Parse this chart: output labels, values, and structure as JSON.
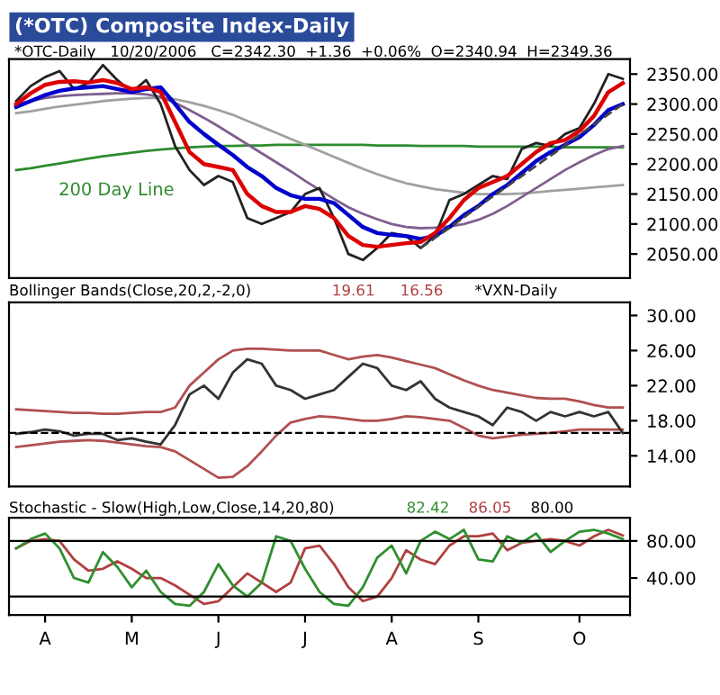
{
  "chart_data": [
    {
      "type": "line",
      "title": "(*OTC) Composite Index-Daily",
      "subtitle": "*OTC-Daily   10/20/2006   C=2342.30  +1.36  +0.06%  O=2340.94  H=2349.36",
      "tick_labels": "y",
      "grid": false,
      "ylim": [
        2010,
        2375
      ],
      "yticks": [
        {
          "value": 2050,
          "label": "2050.00"
        },
        {
          "value": 2100,
          "label": "2100.00"
        },
        {
          "value": 2150,
          "label": "2150.00"
        },
        {
          "value": 2200,
          "label": "2200.00"
        },
        {
          "value": 2250,
          "label": "2250.00"
        },
        {
          "value": 2300,
          "label": "2300.00"
        },
        {
          "value": 2350,
          "label": "2350.00"
        }
      ],
      "categories": [
        null,
        null,
        null,
        null,
        null,
        null,
        null,
        null,
        null,
        null,
        null,
        null,
        null,
        null,
        null,
        null,
        null,
        null,
        null,
        null,
        null,
        null,
        null,
        null,
        null,
        null,
        null,
        null,
        null,
        null,
        null,
        null,
        null,
        null,
        null,
        null,
        null,
        null,
        null,
        null,
        null,
        null,
        null
      ],
      "annotations": [
        "200 Day Line"
      ],
      "series": [
        {
          "color": "#2e8b2e",
          "values": [
            2190,
            2193,
            2197,
            2201,
            2205,
            2209,
            2213,
            2216,
            2219,
            2222,
            2224,
            2226,
            2228,
            2229,
            2230,
            2230,
            2231,
            2231,
            2232,
            2232,
            2232,
            2232,
            2232,
            2232,
            2232,
            2231,
            2231,
            2231,
            2230,
            2230,
            2230,
            2230,
            2229,
            2229,
            2229,
            2229,
            2229,
            2229,
            2228,
            2228,
            2228,
            2228,
            2228
          ]
        },
        {
          "color": "#a0a0a0",
          "values": [
            2285,
            2288,
            2292,
            2296,
            2299,
            2302,
            2305,
            2307,
            2309,
            2310,
            2310,
            2308,
            2303,
            2297,
            2290,
            2282,
            2272,
            2262,
            2252,
            2242,
            2232,
            2222,
            2212,
            2202,
            2192,
            2183,
            2175,
            2168,
            2163,
            2158,
            2155,
            2152,
            2150,
            2150,
            2150,
            2151,
            2153,
            2155,
            2157,
            2159,
            2161,
            2163,
            2165
          ]
        },
        {
          "color": "#7f5f8f",
          "values": [
            2300,
            2305,
            2310,
            2313,
            2315,
            2316,
            2317,
            2318,
            2318,
            2316,
            2312,
            2302,
            2290,
            2277,
            2263,
            2248,
            2233,
            2218,
            2203,
            2188,
            2172,
            2157,
            2142,
            2128,
            2117,
            2108,
            2100,
            2095,
            2093,
            2094,
            2096,
            2100,
            2107,
            2117,
            2130,
            2145,
            2160,
            2175,
            2190,
            2203,
            2215,
            2225,
            2230
          ]
        },
        {
          "color": "#222222",
          "values": [
            2305,
            2330,
            2345,
            2355,
            2325,
            2335,
            2365,
            2340,
            2320,
            2340,
            2300,
            2230,
            2190,
            2165,
            2180,
            2170,
            2110,
            2100,
            2110,
            2120,
            2150,
            2160,
            2110,
            2050,
            2040,
            2060,
            2085,
            2080,
            2060,
            2080,
            2140,
            2150,
            2165,
            2180,
            2175,
            2225,
            2235,
            2230,
            2250,
            2260,
            2300,
            2350,
            2342
          ]
        },
        {
          "color": "#0000cc",
          "values": [
            2295,
            2305,
            2315,
            2322,
            2326,
            2328,
            2330,
            2325,
            2320,
            2325,
            2328,
            2300,
            2270,
            2250,
            2232,
            2215,
            2195,
            2180,
            2160,
            2148,
            2142,
            2142,
            2135,
            2115,
            2095,
            2085,
            2082,
            2080,
            2075,
            2080,
            2095,
            2115,
            2130,
            2150,
            2165,
            2185,
            2205,
            2220,
            2232,
            2245,
            2265,
            2290,
            2300
          ]
        },
        {
          "color": "#dd0000",
          "values": [
            2300,
            2318,
            2332,
            2337,
            2338,
            2336,
            2340,
            2335,
            2325,
            2328,
            2320,
            2270,
            2220,
            2200,
            2195,
            2190,
            2150,
            2130,
            2120,
            2120,
            2130,
            2125,
            2110,
            2080,
            2065,
            2062,
            2065,
            2068,
            2070,
            2085,
            2110,
            2140,
            2160,
            2170,
            2180,
            2200,
            2220,
            2235,
            2240,
            2255,
            2280,
            2320,
            2335
          ]
        },
        {
          "color": "#444444",
          "line_style": "dashed",
          "values": [
            null,
            null,
            null,
            null,
            null,
            null,
            null,
            null,
            null,
            null,
            null,
            null,
            null,
            null,
            null,
            null,
            null,
            null,
            null,
            null,
            null,
            null,
            null,
            null,
            null,
            null,
            null,
            null,
            2060,
            2077,
            2094,
            2111,
            2129,
            2146,
            2163,
            2180,
            2197,
            2214,
            2231,
            2249,
            2266,
            2283,
            2300
          ]
        }
      ]
    },
    {
      "type": "line",
      "title": "Bollinger Bands(Close,20,2,-2,0)",
      "tick_labels": "y",
      "grid": false,
      "ylim": [
        10.5,
        31.5
      ],
      "yticks": [
        {
          "value": 14,
          "label": "14.00"
        },
        {
          "value": 18,
          "label": "18.00"
        },
        {
          "value": 22,
          "label": "22.00"
        },
        {
          "value": 26,
          "label": "26.00"
        },
        {
          "value": 30,
          "label": "30.00"
        }
      ],
      "categories": [
        null,
        null,
        null,
        null,
        null,
        null,
        null,
        null,
        null,
        null,
        null,
        null,
        null,
        null,
        null,
        null,
        null,
        null,
        null,
        null,
        null,
        null,
        null,
        null,
        null,
        null,
        null,
        null,
        null,
        null,
        null,
        null,
        null,
        null,
        null,
        null,
        null,
        null,
        null,
        null,
        null,
        null,
        null
      ],
      "annotations": [
        "19.61",
        "16.56",
        "*VXN-Daily"
      ],
      "ref_lines": [
        {
          "axis": "y",
          "value": 16.6,
          "color": "#000000",
          "line_style": "dashed"
        }
      ],
      "series": [
        {
          "color": "#b05050",
          "values": [
            19.3,
            19.2,
            19.1,
            19.0,
            18.9,
            18.9,
            18.8,
            18.8,
            18.9,
            19.0,
            19.0,
            19.5,
            22.0,
            23.5,
            25.0,
            26.0,
            26.2,
            26.2,
            26.1,
            26.0,
            26.0,
            26.0,
            25.5,
            25.0,
            25.3,
            25.5,
            25.2,
            24.8,
            24.4,
            24.0,
            23.3,
            22.6,
            22.0,
            21.5,
            21.2,
            20.9,
            20.6,
            20.5,
            20.5,
            20.2,
            19.8,
            19.5,
            19.5
          ]
        },
        {
          "color": "#b05050",
          "values": [
            15.0,
            15.2,
            15.4,
            15.6,
            15.7,
            15.8,
            15.7,
            15.5,
            15.3,
            15.1,
            15.0,
            14.5,
            13.5,
            12.5,
            11.5,
            11.6,
            12.8,
            14.5,
            16.3,
            17.8,
            18.2,
            18.5,
            18.4,
            18.2,
            18.0,
            18.0,
            18.2,
            18.5,
            18.4,
            18.2,
            18.0,
            17.2,
            16.3,
            16.0,
            16.2,
            16.4,
            16.5,
            16.6,
            16.8,
            17.0,
            17.0,
            17.0,
            17.0
          ]
        },
        {
          "color": "#333333",
          "values": [
            16.5,
            16.7,
            17.0,
            16.8,
            16.3,
            16.5,
            16.5,
            15.8,
            16.0,
            15.6,
            15.3,
            17.5,
            21.0,
            22.0,
            20.5,
            23.5,
            25.0,
            24.5,
            22.0,
            21.5,
            20.5,
            21.0,
            21.5,
            23.0,
            24.5,
            24.0,
            22.0,
            21.5,
            22.5,
            20.5,
            19.5,
            19.0,
            18.5,
            17.5,
            19.5,
            19.0,
            18.0,
            19.0,
            18.5,
            19.0,
            18.5,
            19.0,
            16.6
          ]
        }
      ]
    },
    {
      "type": "line",
      "title": "Stochastic - Slow(High,Low,Close,14,20,80)",
      "grid": false,
      "ylim": [
        0,
        105
      ],
      "yticks": [
        {
          "value": 40,
          "label": "40.00"
        },
        {
          "value": 80,
          "label": "80.00"
        }
      ],
      "categories": [
        null,
        null,
        "A",
        null,
        null,
        null,
        null,
        null,
        "M",
        null,
        null,
        null,
        null,
        null,
        "J",
        null,
        null,
        null,
        null,
        null,
        "J",
        null,
        null,
        null,
        null,
        null,
        "A",
        null,
        null,
        null,
        null,
        null,
        "S",
        null,
        null,
        null,
        null,
        null,
        null,
        "O",
        null,
        null,
        null
      ],
      "annotations": [
        "82.42",
        "86.05",
        "80.00"
      ],
      "ref_lines": [
        {
          "axis": "y",
          "value": 80,
          "color": "#000000",
          "line_style": "solid"
        },
        {
          "axis": "y",
          "value": 20,
          "color": "#000000",
          "line_style": "solid"
        }
      ],
      "series": [
        {
          "color": "#b04040",
          "values": [
            72,
            80,
            82,
            80,
            60,
            48,
            50,
            58,
            50,
            40,
            40,
            32,
            22,
            12,
            15,
            30,
            45,
            35,
            25,
            35,
            72,
            75,
            55,
            30,
            15,
            20,
            40,
            70,
            60,
            55,
            75,
            85,
            85,
            88,
            70,
            78,
            80,
            82,
            80,
            75,
            85,
            92,
            86
          ]
        },
        {
          "color": "#2f8f2f",
          "values": [
            72,
            82,
            88,
            72,
            40,
            35,
            68,
            52,
            30,
            48,
            25,
            12,
            10,
            25,
            55,
            32,
            20,
            35,
            85,
            80,
            50,
            25,
            12,
            10,
            30,
            62,
            75,
            45,
            80,
            90,
            82,
            92,
            60,
            58,
            85,
            78,
            88,
            68,
            80,
            90,
            92,
            88,
            82
          ]
        }
      ]
    }
  ]
}
